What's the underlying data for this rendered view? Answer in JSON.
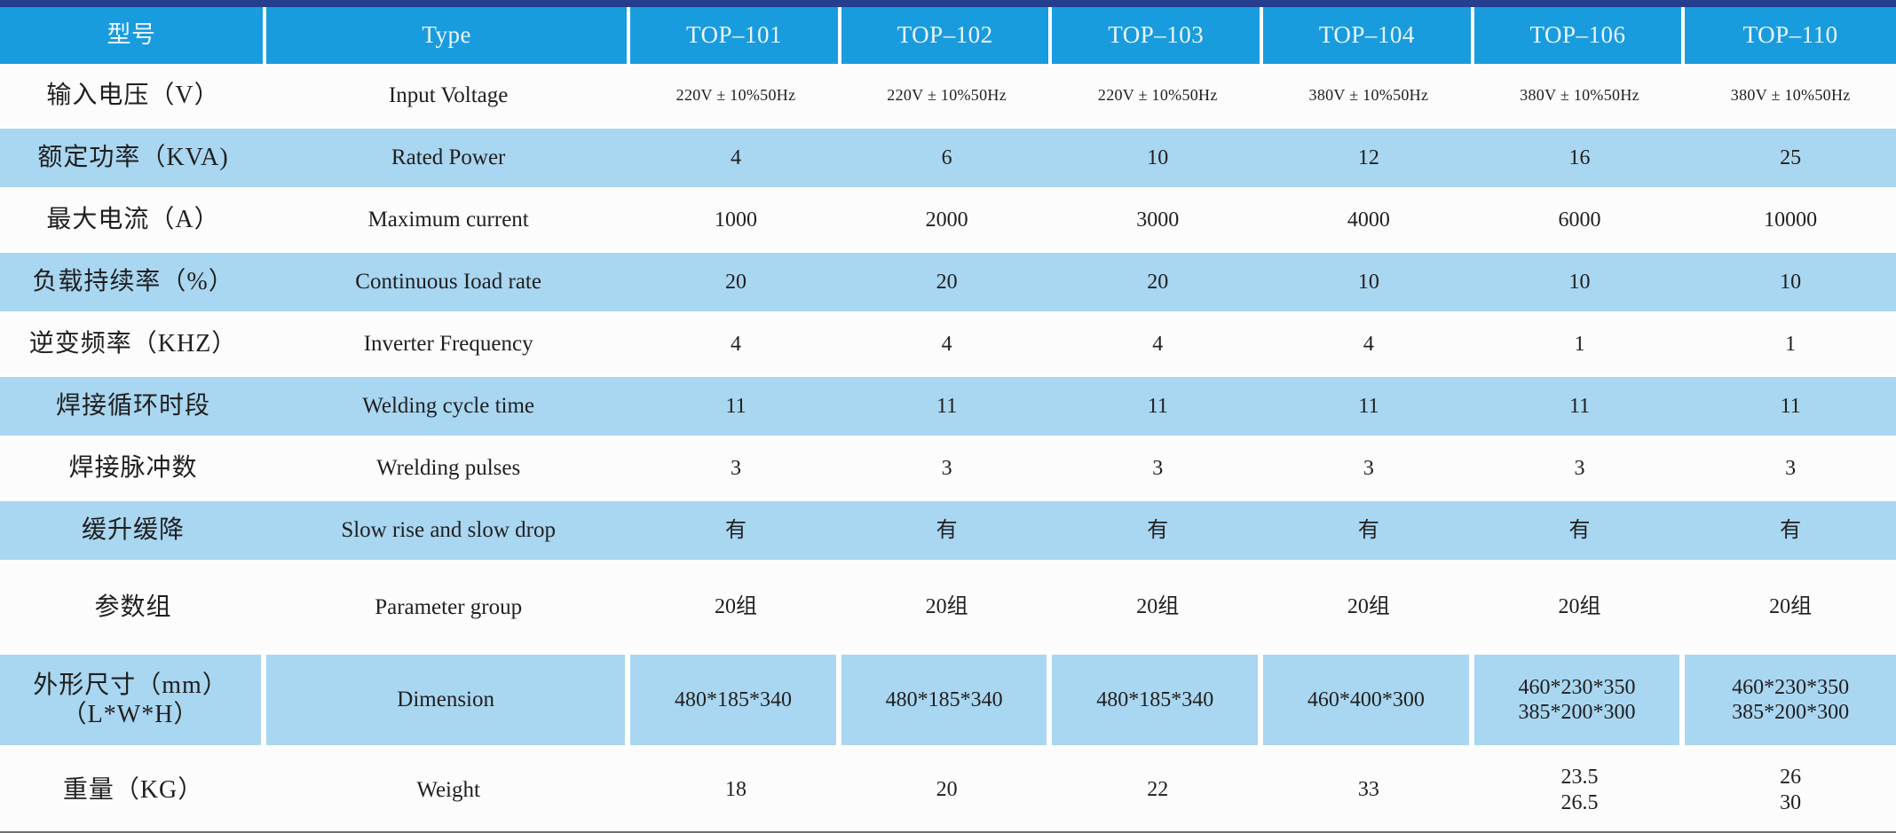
{
  "header": {
    "model_col": "型号",
    "type_col": "Type",
    "models": [
      "TOP–101",
      "TOP–102",
      "TOP–103",
      "TOP–104",
      "TOP–106",
      "TOP–110"
    ]
  },
  "rows": [
    {
      "zh": "输入电压（V）",
      "en": "Input Voltage",
      "small": true,
      "values": [
        "220V ± 10%50Hz",
        "220V ± 10%50Hz",
        "220V ± 10%50Hz",
        "380V ± 10%50Hz",
        "380V ± 10%50Hz",
        "380V ± 10%50Hz"
      ]
    },
    {
      "zh": "额定功率（KVA)",
      "en": "Rated Power",
      "values": [
        "4",
        "6",
        "10",
        "12",
        "16",
        "25"
      ]
    },
    {
      "zh": "最大电流（A）",
      "en": "Maximum current",
      "values": [
        "1000",
        "2000",
        "3000",
        "4000",
        "6000",
        "10000"
      ]
    },
    {
      "zh": "负载持续率（%）",
      "en": "Continuous Ioad rate",
      "values": [
        "20",
        "20",
        "20",
        "10",
        "10",
        "10"
      ]
    },
    {
      "zh": "逆变频率（KHZ）",
      "en": "Inverter Frequency",
      "values": [
        "4",
        "4",
        "4",
        "4",
        "1",
        "1"
      ]
    },
    {
      "zh": "焊接循环时段",
      "en": "Welding cycle time",
      "values": [
        "11",
        "11",
        "11",
        "11",
        "11",
        "11"
      ]
    },
    {
      "zh": "焊接脉冲数",
      "en": "Wrelding pulses",
      "values": [
        "3",
        "3",
        "3",
        "3",
        "3",
        "3"
      ]
    },
    {
      "zh": "缓升缓降",
      "en": "Slow rise and slow drop",
      "values": [
        "有",
        "有",
        "有",
        "有",
        "有",
        "有"
      ]
    },
    {
      "zh": "参数组",
      "en": "Parameter group",
      "values": [
        "20组",
        "20组",
        "20组",
        "20组",
        "20组",
        "20组"
      ]
    },
    {
      "zh": "外形尺寸（mm）\n（L*W*H）",
      "en": "Dimension",
      "dividers": true,
      "values": [
        "480*185*340",
        "480*185*340",
        "480*185*340",
        "460*400*300",
        "460*230*350\n385*200*300",
        "460*230*350\n385*200*300"
      ]
    },
    {
      "zh": "重量（KG）",
      "en": "Weight",
      "values": [
        "18",
        "20",
        "22",
        "33",
        "23.5\n26.5",
        "26\n30"
      ]
    }
  ],
  "colors": {
    "top_border": "#253E8E",
    "header_bg": "#199CDE",
    "header_text": "#ECF6FD",
    "row_blue": "#A9D6F0",
    "row_white": "#FCFCFC",
    "text": "#1F1F1F"
  }
}
